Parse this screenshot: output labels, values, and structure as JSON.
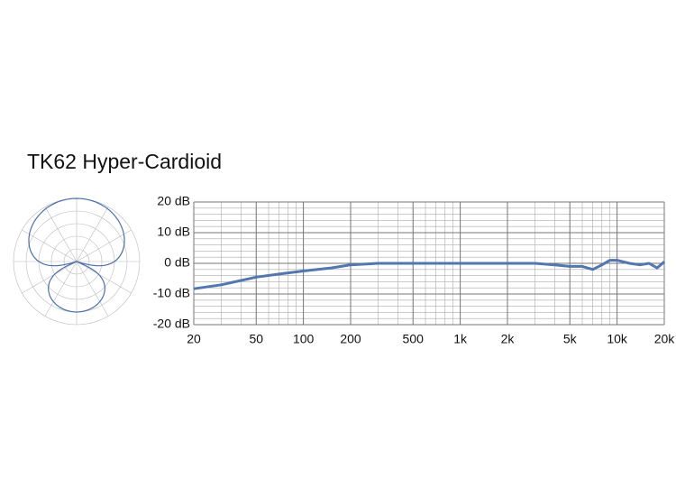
{
  "chart_data": {
    "type": "line",
    "title": "TK62 Hyper-Cardioid",
    "log_x": true,
    "grid": true,
    "xlim": [
      20,
      20000
    ],
    "xticks": [
      20,
      50,
      100,
      200,
      500,
      {
        "value": 1000,
        "label": "1k"
      },
      {
        "value": 2000,
        "label": "2k"
      },
      {
        "value": 5000,
        "label": "5k"
      },
      {
        "value": 10000,
        "label": "10k"
      },
      {
        "value": 20000,
        "label": "20k"
      }
    ],
    "ylim": [
      -20,
      20
    ],
    "yticks": [
      {
        "value": 20,
        "label": "20 dB"
      },
      {
        "value": 10,
        "label": "10 dB"
      },
      {
        "value": 0,
        "label": "0 dB"
      },
      {
        "value": -10,
        "label": "-10 dB"
      },
      {
        "value": -20,
        "label": "-20 dB"
      }
    ],
    "series": [
      {
        "color": "#5276b0",
        "x": [
          20,
          30,
          50,
          70,
          100,
          150,
          200,
          300,
          500,
          1000,
          2000,
          3000,
          4000,
          5000,
          6000,
          7000,
          8000,
          9000,
          10000,
          12000,
          14000,
          16000,
          18000,
          20000
        ],
        "values": [
          -8.3,
          -7,
          -4.5,
          -3.5,
          -2.5,
          -1.5,
          -0.5,
          0,
          0,
          0,
          0,
          0,
          -0.5,
          -1,
          -1,
          -2,
          -0.5,
          1,
          1,
          0,
          -0.5,
          0,
          -1.5,
          0.5
        ]
      }
    ]
  }
}
